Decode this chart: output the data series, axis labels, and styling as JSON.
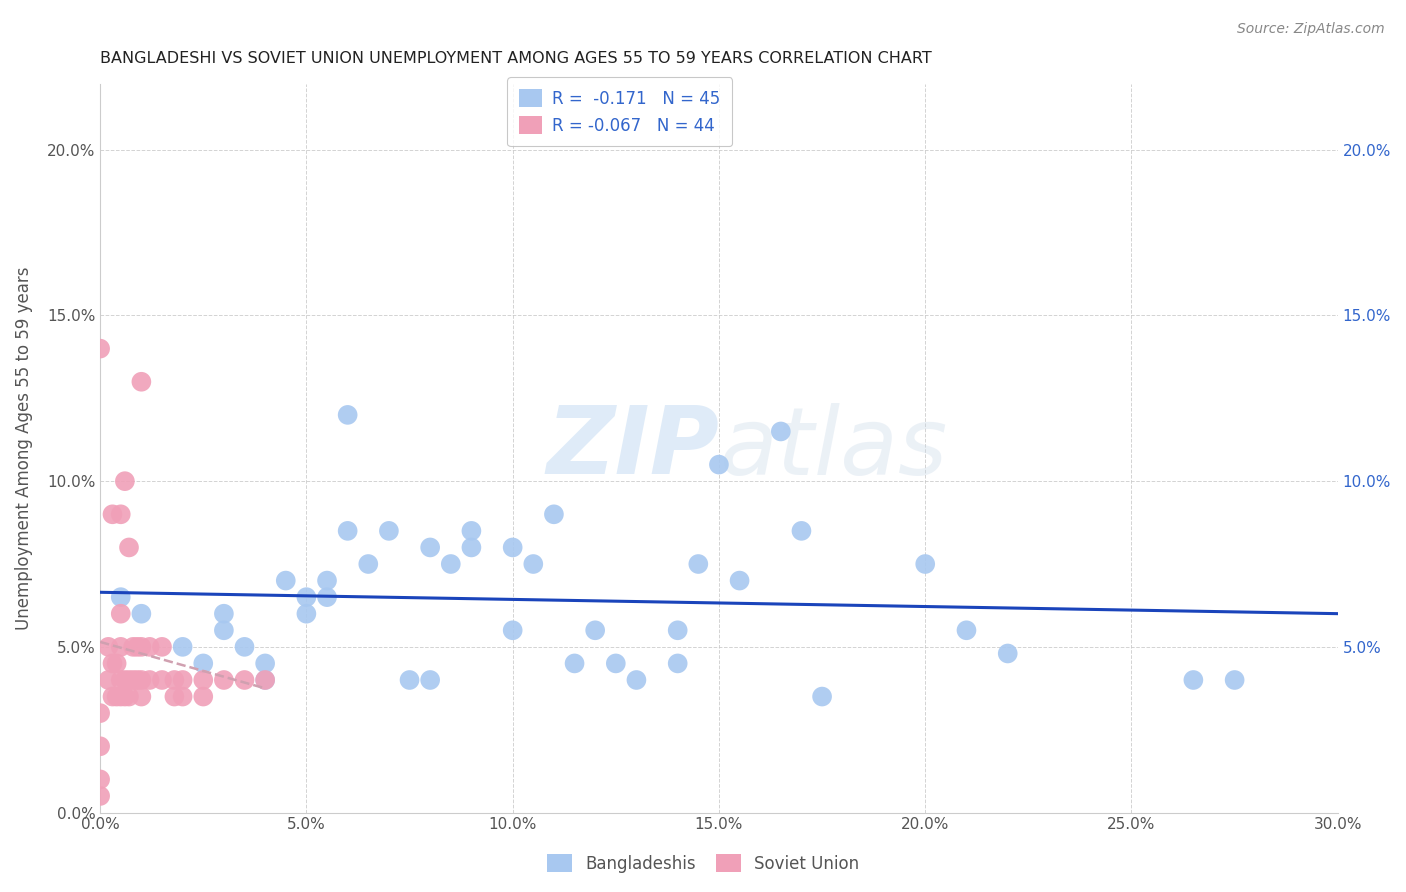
{
  "title": "BANGLADESHI VS SOVIET UNION UNEMPLOYMENT AMONG AGES 55 TO 59 YEARS CORRELATION CHART",
  "source": "Source: ZipAtlas.com",
  "ylabel": "Unemployment Among Ages 55 to 59 years",
  "xlim": [
    0.0,
    0.3
  ],
  "ylim": [
    0.0,
    0.22
  ],
  "xticks": [
    0.0,
    0.05,
    0.1,
    0.15,
    0.2,
    0.25,
    0.3
  ],
  "yticks": [
    0.0,
    0.05,
    0.1,
    0.15,
    0.2
  ],
  "background_color": "#ffffff",
  "grid_color": "#c8c8c8",
  "blue_color": "#a8c8f0",
  "pink_color": "#f0a0b8",
  "blue_line_color": "#1a44bb",
  "pink_line_color": "#d0a0b0",
  "right_axis_color": "#3366cc",
  "legend_r_blue": "-0.171",
  "legend_n_blue": "45",
  "legend_r_pink": "-0.067",
  "legend_n_pink": "44",
  "legend_label_blue": "Bangladeshis",
  "legend_label_pink": "Soviet Union",
  "watermark_zip": "ZIP",
  "watermark_atlas": "atlas",
  "blue_trend_x": [
    0.005,
    0.275
  ],
  "blue_trend_y": [
    0.073,
    0.04
  ],
  "pink_trend_x": [
    0.0,
    0.04
  ],
  "pink_trend_y": [
    0.052,
    0.04
  ],
  "bangladeshi_x": [
    0.005,
    0.01,
    0.02,
    0.025,
    0.03,
    0.03,
    0.035,
    0.04,
    0.04,
    0.045,
    0.05,
    0.05,
    0.055,
    0.055,
    0.06,
    0.06,
    0.065,
    0.07,
    0.075,
    0.08,
    0.08,
    0.085,
    0.09,
    0.09,
    0.1,
    0.1,
    0.105,
    0.11,
    0.115,
    0.12,
    0.125,
    0.13,
    0.14,
    0.14,
    0.145,
    0.15,
    0.155,
    0.165,
    0.17,
    0.175,
    0.2,
    0.21,
    0.22,
    0.265,
    0.275
  ],
  "bangladeshi_y": [
    0.065,
    0.06,
    0.05,
    0.045,
    0.06,
    0.055,
    0.05,
    0.045,
    0.04,
    0.07,
    0.065,
    0.06,
    0.065,
    0.07,
    0.085,
    0.12,
    0.075,
    0.085,
    0.04,
    0.04,
    0.08,
    0.075,
    0.085,
    0.08,
    0.08,
    0.055,
    0.075,
    0.09,
    0.045,
    0.055,
    0.045,
    0.04,
    0.055,
    0.045,
    0.075,
    0.105,
    0.07,
    0.115,
    0.085,
    0.035,
    0.075,
    0.055,
    0.048,
    0.04,
    0.04
  ],
  "soviet_x": [
    0.0,
    0.0,
    0.0,
    0.0,
    0.0,
    0.002,
    0.002,
    0.003,
    0.003,
    0.003,
    0.004,
    0.004,
    0.005,
    0.005,
    0.005,
    0.005,
    0.005,
    0.006,
    0.006,
    0.006,
    0.007,
    0.007,
    0.007,
    0.008,
    0.008,
    0.009,
    0.009,
    0.01,
    0.01,
    0.01,
    0.01,
    0.012,
    0.012,
    0.015,
    0.015,
    0.018,
    0.018,
    0.02,
    0.02,
    0.025,
    0.025,
    0.03,
    0.035,
    0.04
  ],
  "soviet_y": [
    0.005,
    0.01,
    0.02,
    0.03,
    0.14,
    0.04,
    0.05,
    0.035,
    0.045,
    0.09,
    0.035,
    0.045,
    0.035,
    0.04,
    0.05,
    0.06,
    0.09,
    0.035,
    0.04,
    0.1,
    0.035,
    0.04,
    0.08,
    0.04,
    0.05,
    0.04,
    0.05,
    0.035,
    0.04,
    0.05,
    0.13,
    0.04,
    0.05,
    0.04,
    0.05,
    0.035,
    0.04,
    0.035,
    0.04,
    0.035,
    0.04,
    0.04,
    0.04,
    0.04
  ]
}
